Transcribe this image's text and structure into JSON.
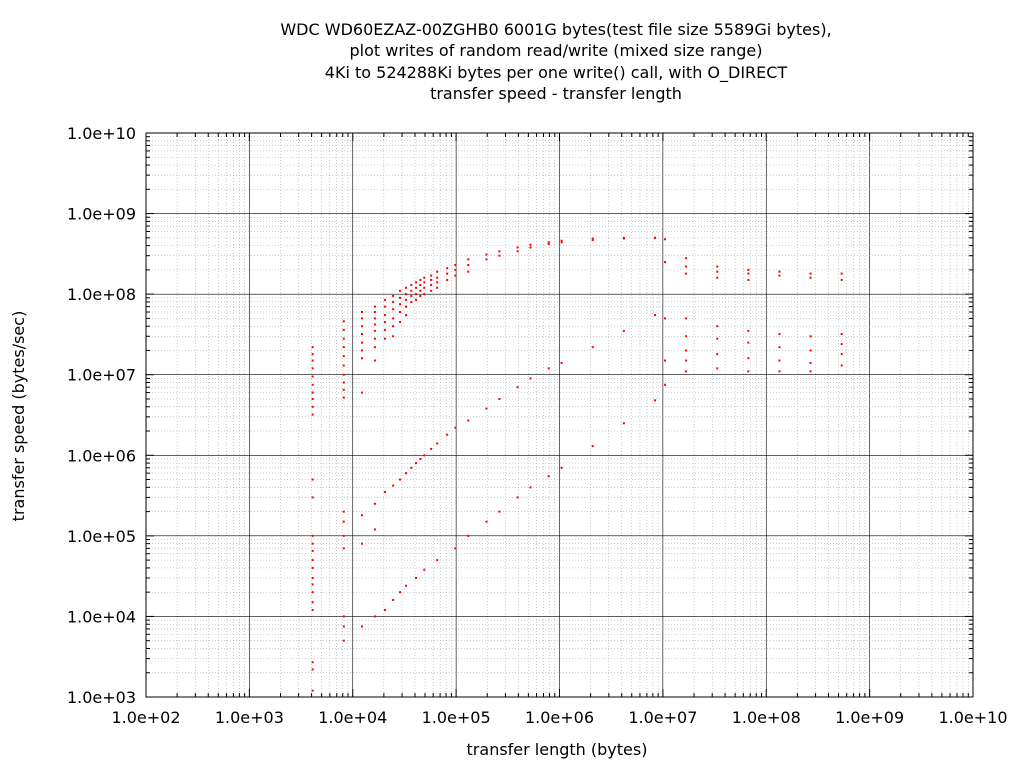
{
  "chart_data": {
    "type": "scatter",
    "title_lines": [
      "WDC WD60EZAZ-00ZGHB0 6001G bytes(test file size 5589Gi bytes),",
      "plot writes of random read/write (mixed size range)",
      "4Ki to 524288Ki bytes per one write() call, with O_DIRECT",
      "transfer speed - transfer length"
    ],
    "xlabel": "transfer length (bytes)",
    "ylabel": "transfer speed (bytes/sec)",
    "x_scale": "log",
    "y_scale": "log",
    "xlim": [
      100,
      10000000000
    ],
    "ylim": [
      1000,
      10000000000
    ],
    "x_ticks": [
      "1.0e+02",
      "1.0e+03",
      "1.0e+04",
      "1.0e+05",
      "1.0e+06",
      "1.0e+07",
      "1.0e+08",
      "1.0e+09",
      "1.0e+10"
    ],
    "y_ticks": [
      "1.0e+03",
      "1.0e+04",
      "1.0e+05",
      "1.0e+06",
      "1.0e+07",
      "1.0e+08",
      "1.0e+09",
      "1.0e+10"
    ],
    "grid": true,
    "series_color": "#ff0000",
    "series": [
      {
        "values": [
          [
            4096,
            22000000.0
          ],
          [
            4096,
            18000000.0
          ],
          [
            4096,
            15000000.0
          ],
          [
            4096,
            12000000.0
          ],
          [
            4096,
            9500000.0
          ],
          [
            4096,
            7500000.0
          ],
          [
            4096,
            6000000.0
          ],
          [
            4096,
            5000000.0
          ],
          [
            4096,
            4000000.0
          ],
          [
            4096,
            3200000.0
          ],
          [
            4096,
            500000.0
          ],
          [
            4096,
            300000.0
          ],
          [
            4096,
            100000.0
          ],
          [
            4096,
            80000.0
          ],
          [
            4096,
            65000.0
          ],
          [
            4096,
            50000.0
          ],
          [
            4096,
            40000.0
          ],
          [
            4096,
            30000.0
          ],
          [
            4096,
            25000.0
          ],
          [
            4096,
            20000.0
          ],
          [
            4096,
            15000.0
          ],
          [
            4096,
            12000.0
          ],
          [
            4096,
            2700.0
          ],
          [
            4096,
            2200.0
          ],
          [
            4096,
            1200.0
          ],
          [
            8192,
            46000000.0
          ],
          [
            8192,
            36000000.0
          ],
          [
            8192,
            28000000.0
          ],
          [
            8192,
            22000000.0
          ],
          [
            8192,
            17000000.0
          ],
          [
            8192,
            13000000.0
          ],
          [
            8192,
            10000000.0
          ],
          [
            8192,
            8000000.0
          ],
          [
            8192,
            6500000.0
          ],
          [
            8192,
            5200000.0
          ],
          [
            8192,
            200000.0
          ],
          [
            8192,
            150000.0
          ],
          [
            8192,
            100000.0
          ],
          [
            8192,
            70000.0
          ],
          [
            8192,
            10000.0
          ],
          [
            8192,
            7500.0
          ],
          [
            8192,
            5000.0
          ],
          [
            12288,
            60000000.0
          ],
          [
            12288,
            50000000.0
          ],
          [
            12288,
            40000000.0
          ],
          [
            12288,
            32000000.0
          ],
          [
            12288,
            25000000.0
          ],
          [
            12288,
            20000000.0
          ],
          [
            12288,
            16000000.0
          ],
          [
            12288,
            6000000.0
          ],
          [
            12288,
            180000.0
          ],
          [
            12288,
            80000.0
          ],
          [
            12288,
            7500.0
          ],
          [
            16384,
            70000000.0
          ],
          [
            16384,
            60000000.0
          ],
          [
            16384,
            50000000.0
          ],
          [
            16384,
            42000000.0
          ],
          [
            16384,
            35000000.0
          ],
          [
            16384,
            28000000.0
          ],
          [
            16384,
            22000000.0
          ],
          [
            16384,
            15000000.0
          ],
          [
            16384,
            250000.0
          ],
          [
            16384,
            120000.0
          ],
          [
            16384,
            10000.0
          ],
          [
            20480,
            85000000.0
          ],
          [
            20480,
            70000000.0
          ],
          [
            20480,
            55000000.0
          ],
          [
            20480,
            45000000.0
          ],
          [
            20480,
            36000000.0
          ],
          [
            20480,
            28000000.0
          ],
          [
            20480,
            350000.0
          ],
          [
            20480,
            12000.0
          ],
          [
            24576,
            95000000.0
          ],
          [
            24576,
            80000000.0
          ],
          [
            24576,
            65000000.0
          ],
          [
            24576,
            50000000.0
          ],
          [
            24576,
            40000000.0
          ],
          [
            24576,
            30000000.0
          ],
          [
            24576,
            420000.0
          ],
          [
            24576,
            16000.0
          ],
          [
            28672,
            110000000.0
          ],
          [
            28672,
            90000000.0
          ],
          [
            28672,
            75000000.0
          ],
          [
            28672,
            60000000.0
          ],
          [
            28672,
            45000000.0
          ],
          [
            28672,
            500000.0
          ],
          [
            28672,
            20000.0
          ],
          [
            32768,
            120000000.0
          ],
          [
            32768,
            100000000.0
          ],
          [
            32768,
            85000000.0
          ],
          [
            32768,
            70000000.0
          ],
          [
            32768,
            55000000.0
          ],
          [
            32768,
            600000.0
          ],
          [
            32768,
            24000.0
          ],
          [
            36864,
            130000000.0
          ],
          [
            36864,
            110000000.0
          ],
          [
            36864,
            95000000.0
          ],
          [
            36864,
            80000000.0
          ],
          [
            36864,
            700000.0
          ],
          [
            40960,
            140000000.0
          ],
          [
            40960,
            120000000.0
          ],
          [
            40960,
            100000000.0
          ],
          [
            40960,
            85000000.0
          ],
          [
            40960,
            800000.0
          ],
          [
            40960,
            30000.0
          ],
          [
            45056,
            150000000.0
          ],
          [
            45056,
            130000000.0
          ],
          [
            45056,
            110000000.0
          ],
          [
            45056,
            95000000.0
          ],
          [
            45056,
            900000.0
          ],
          [
            49152,
            160000000.0
          ],
          [
            49152,
            140000000.0
          ],
          [
            49152,
            120000000.0
          ],
          [
            49152,
            100000000.0
          ],
          [
            49152,
            1000000.0
          ],
          [
            49152,
            38000.0
          ],
          [
            57344,
            170000000.0
          ],
          [
            57344,
            150000000.0
          ],
          [
            57344,
            130000000.0
          ],
          [
            57344,
            110000000.0
          ],
          [
            57344,
            1200000.0
          ],
          [
            65536,
            190000000.0
          ],
          [
            65536,
            160000000.0
          ],
          [
            65536,
            140000000.0
          ],
          [
            65536,
            120000000.0
          ],
          [
            65536,
            1400000.0
          ],
          [
            65536,
            50000.0
          ],
          [
            81920,
            210000000.0
          ],
          [
            81920,
            180000000.0
          ],
          [
            81920,
            150000000.0
          ],
          [
            81920,
            1800000.0
          ],
          [
            98304,
            230000000.0
          ],
          [
            98304,
            200000000.0
          ],
          [
            98304,
            170000000.0
          ],
          [
            98304,
            2200000.0
          ],
          [
            98304,
            70000.0
          ],
          [
            131072,
            270000000.0
          ],
          [
            131072,
            230000000.0
          ],
          [
            131072,
            190000000.0
          ],
          [
            131072,
            2700000.0
          ],
          [
            131072,
            100000.0
          ],
          [
            196608,
            310000000.0
          ],
          [
            196608,
            270000000.0
          ],
          [
            196608,
            3800000.0
          ],
          [
            196608,
            150000.0
          ],
          [
            262144,
            340000000.0
          ],
          [
            262144,
            300000000.0
          ],
          [
            262144,
            5000000.0
          ],
          [
            262144,
            200000.0
          ],
          [
            393216,
            380000000.0
          ],
          [
            393216,
            340000000.0
          ],
          [
            393216,
            7000000.0
          ],
          [
            393216,
            300000.0
          ],
          [
            524288,
            410000000.0
          ],
          [
            524288,
            380000000.0
          ],
          [
            524288,
            9000000.0
          ],
          [
            524288,
            400000.0
          ],
          [
            786432,
            440000000.0
          ],
          [
            786432,
            420000000.0
          ],
          [
            786432,
            12000000.0
          ],
          [
            786432,
            550000.0
          ],
          [
            1048576,
            460000000.0
          ],
          [
            1048576,
            440000000.0
          ],
          [
            1048576,
            14000000.0
          ],
          [
            1048576,
            700000.0
          ],
          [
            2097152,
            490000000.0
          ],
          [
            2097152,
            470000000.0
          ],
          [
            2097152,
            22000000.0
          ],
          [
            2097152,
            1300000.0
          ],
          [
            4194304,
            500000000.0
          ],
          [
            4194304,
            490000000.0
          ],
          [
            4194304,
            35000000.0
          ],
          [
            4194304,
            2500000.0
          ],
          [
            8388608,
            500000000.0
          ],
          [
            8388608,
            500000000.0
          ],
          [
            8388608,
            55000000.0
          ],
          [
            8388608,
            4800000.0
          ],
          [
            10485760,
            480000000.0
          ],
          [
            10485760,
            250000000.0
          ],
          [
            10485760,
            50000000.0
          ],
          [
            10485760,
            15000000.0
          ],
          [
            10485760,
            7500000.0
          ],
          [
            16777216,
            280000000.0
          ],
          [
            16777216,
            220000000.0
          ],
          [
            16777216,
            180000000.0
          ],
          [
            16777216,
            50000000.0
          ],
          [
            16777216,
            30000000.0
          ],
          [
            16777216,
            20000000.0
          ],
          [
            16777216,
            15000000.0
          ],
          [
            16777216,
            11000000.0
          ],
          [
            33554432,
            220000000.0
          ],
          [
            33554432,
            190000000.0
          ],
          [
            33554432,
            160000000.0
          ],
          [
            33554432,
            40000000.0
          ],
          [
            33554432,
            28000000.0
          ],
          [
            33554432,
            18000000.0
          ],
          [
            33554432,
            12000000.0
          ],
          [
            67108864,
            200000000.0
          ],
          [
            67108864,
            180000000.0
          ],
          [
            67108864,
            150000000.0
          ],
          [
            67108864,
            35000000.0
          ],
          [
            67108864,
            25000000.0
          ],
          [
            67108864,
            16000000.0
          ],
          [
            67108864,
            11000000.0
          ],
          [
            134217728,
            190000000.0
          ],
          [
            134217728,
            170000000.0
          ],
          [
            134217728,
            32000000.0
          ],
          [
            134217728,
            22000000.0
          ],
          [
            134217728,
            15000000.0
          ],
          [
            134217728,
            11000000.0
          ],
          [
            268435456,
            180000000.0
          ],
          [
            268435456,
            160000000.0
          ],
          [
            268435456,
            30000000.0
          ],
          [
            268435456,
            20000000.0
          ],
          [
            268435456,
            14000000.0
          ],
          [
            268435456,
            11000000.0
          ],
          [
            536870912,
            180000000.0
          ],
          [
            536870912,
            150000000.0
          ],
          [
            536870912,
            32000000.0
          ],
          [
            536870912,
            24000000.0
          ],
          [
            536870912,
            18000000.0
          ],
          [
            536870912,
            13000000.0
          ]
        ]
      }
    ]
  }
}
